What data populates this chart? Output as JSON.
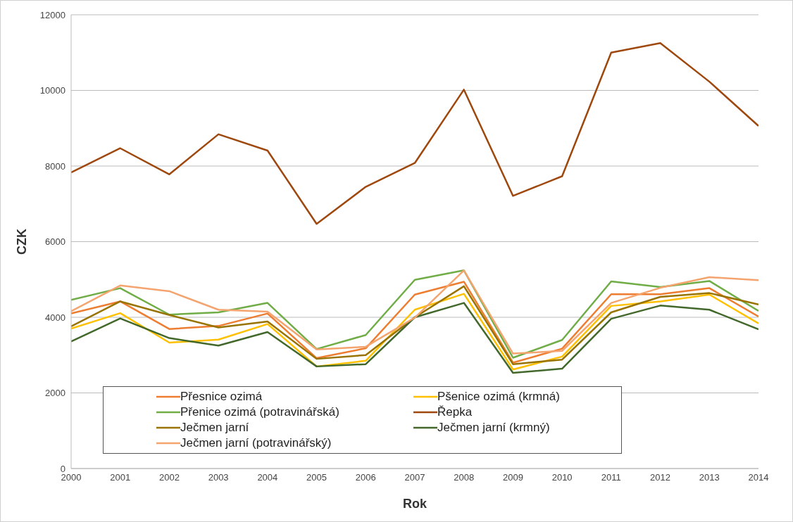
{
  "chart_data": {
    "type": "line",
    "xlabel": "Rok",
    "ylabel": "CZK",
    "x": [
      2000,
      2001,
      2002,
      2003,
      2004,
      2005,
      2006,
      2007,
      2008,
      2009,
      2010,
      2011,
      2012,
      2013,
      2014
    ],
    "xlim": [
      2000,
      2014
    ],
    "xticks": [
      2000,
      2001,
      2002,
      2003,
      2004,
      2005,
      2006,
      2007,
      2008,
      2009,
      2010,
      2011,
      2012,
      2013,
      2014
    ],
    "ylim": [
      0,
      12000
    ],
    "yticks": [
      0,
      2000,
      4000,
      6000,
      8000,
      10000,
      12000
    ],
    "grid": "y",
    "legend": "bottom",
    "marker": "none",
    "line_style": "solid",
    "series": [
      {
        "name": "Přesnice ozimá",
        "color": "#ed7d31",
        "values": [
          4100,
          4420,
          3690,
          3770,
          4100,
          2920,
          3180,
          4600,
          4940,
          2800,
          3170,
          4610,
          4610,
          4770,
          4020
        ]
      },
      {
        "name": "Pšenice ozimá (krmná)",
        "color": "#ffc000",
        "values": [
          3700,
          4110,
          3330,
          3410,
          3820,
          2700,
          2850,
          4200,
          4620,
          2620,
          2960,
          4300,
          4420,
          4600,
          3840
        ]
      },
      {
        "name": "Přenice ozimá (potravinářská)",
        "color": "#70ad47",
        "values": [
          4460,
          4770,
          4070,
          4130,
          4380,
          3160,
          3530,
          4990,
          5240,
          2930,
          3400,
          4950,
          4800,
          4960,
          4170
        ]
      },
      {
        "name": "Řepka",
        "color": "#9e480e",
        "values": [
          7830,
          8470,
          7780,
          8840,
          8410,
          6470,
          7450,
          8080,
          10020,
          7210,
          7730,
          11000,
          11250,
          10230,
          9060
        ]
      },
      {
        "name": "Ječmen jarní",
        "color": "#997300",
        "values": [
          3760,
          4420,
          4060,
          3730,
          3890,
          2900,
          3000,
          4000,
          4820,
          2760,
          2880,
          4130,
          4540,
          4640,
          4340
        ]
      },
      {
        "name": "Ječmen jarní (krmný)",
        "color": "#43682b",
        "values": [
          3360,
          3970,
          3450,
          3250,
          3610,
          2700,
          2760,
          4000,
          4380,
          2530,
          2640,
          3960,
          4310,
          4200,
          3680
        ]
      },
      {
        "name": "Ječmen jarní (potravinářský)",
        "color": "#f4a46e",
        "values": [
          4160,
          4840,
          4690,
          4200,
          4150,
          3150,
          3220,
          3990,
          5240,
          3040,
          3110,
          4380,
          4780,
          5060,
          4980
        ]
      }
    ]
  }
}
